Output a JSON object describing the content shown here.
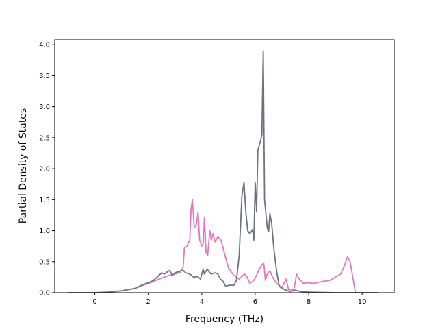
{
  "chart_data": {
    "type": "line",
    "title": "",
    "xlabel": "Frequency (THz)",
    "ylabel": "Partial Density of States",
    "xlim": [
      -1.5,
      11.2
    ],
    "ylim": [
      0,
      4.08
    ],
    "xticks": [
      0,
      2,
      4,
      6,
      8,
      10
    ],
    "xtick_labels": [
      "0",
      "2",
      "4",
      "6",
      "8",
      "10"
    ],
    "yticks": [
      0.0,
      0.5,
      1.0,
      1.5,
      2.0,
      2.5,
      3.0,
      3.5,
      4.0
    ],
    "ytick_labels": [
      "0.0",
      "0.5",
      "1.0",
      "1.5",
      "2.0",
      "2.5",
      "3.0",
      "3.5",
      "4.0"
    ],
    "grid": false,
    "legend": "none",
    "series": [
      {
        "color": "#e377c2",
        "points": [
          [
            -1.0,
            0.0
          ],
          [
            0.0,
            0.0
          ],
          [
            0.5,
            0.01
          ],
          [
            1.0,
            0.03
          ],
          [
            1.5,
            0.07
          ],
          [
            1.8,
            0.12
          ],
          [
            2.0,
            0.15
          ],
          [
            2.2,
            0.18
          ],
          [
            2.4,
            0.22
          ],
          [
            2.6,
            0.25
          ],
          [
            2.8,
            0.28
          ],
          [
            3.0,
            0.3
          ],
          [
            3.2,
            0.33
          ],
          [
            3.3,
            0.4
          ],
          [
            3.35,
            0.72
          ],
          [
            3.45,
            0.75
          ],
          [
            3.55,
            0.85
          ],
          [
            3.6,
            1.35
          ],
          [
            3.65,
            1.5
          ],
          [
            3.72,
            1.05
          ],
          [
            3.8,
            1.1
          ],
          [
            3.86,
            1.3
          ],
          [
            3.92,
            0.85
          ],
          [
            4.0,
            0.75
          ],
          [
            4.06,
            0.8
          ],
          [
            4.1,
            1.22
          ],
          [
            4.16,
            0.65
          ],
          [
            4.22,
            0.6
          ],
          [
            4.3,
            1.0
          ],
          [
            4.36,
            0.85
          ],
          [
            4.42,
            0.95
          ],
          [
            4.5,
            0.82
          ],
          [
            4.6,
            0.9
          ],
          [
            4.72,
            0.85
          ],
          [
            4.8,
            0.72
          ],
          [
            4.9,
            0.55
          ],
          [
            5.0,
            0.4
          ],
          [
            5.2,
            0.28
          ],
          [
            5.4,
            0.22
          ],
          [
            5.6,
            0.3
          ],
          [
            5.7,
            0.25
          ],
          [
            5.8,
            0.15
          ],
          [
            5.95,
            0.2
          ],
          [
            6.05,
            0.28
          ],
          [
            6.15,
            0.38
          ],
          [
            6.25,
            0.45
          ],
          [
            6.32,
            0.48
          ],
          [
            6.38,
            0.2
          ],
          [
            6.45,
            0.3
          ],
          [
            6.55,
            0.35
          ],
          [
            6.65,
            0.25
          ],
          [
            6.8,
            0.15
          ],
          [
            7.0,
            0.08
          ],
          [
            7.15,
            0.22
          ],
          [
            7.25,
            0.05
          ],
          [
            7.45,
            0.05
          ],
          [
            7.55,
            0.3
          ],
          [
            7.65,
            0.22
          ],
          [
            7.8,
            0.15
          ],
          [
            7.95,
            0.16
          ],
          [
            8.2,
            0.15
          ],
          [
            8.5,
            0.18
          ],
          [
            8.8,
            0.2
          ],
          [
            9.0,
            0.25
          ],
          [
            9.2,
            0.3
          ],
          [
            9.35,
            0.45
          ],
          [
            9.45,
            0.58
          ],
          [
            9.55,
            0.5
          ],
          [
            9.65,
            0.25
          ],
          [
            9.75,
            0.0
          ],
          [
            10.6,
            0.0
          ]
        ]
      },
      {
        "color": "#6b7280",
        "points": [
          [
            -1.0,
            0.0
          ],
          [
            0.0,
            0.0
          ],
          [
            0.5,
            0.01
          ],
          [
            1.0,
            0.03
          ],
          [
            1.5,
            0.07
          ],
          [
            1.8,
            0.13
          ],
          [
            2.0,
            0.16
          ],
          [
            2.2,
            0.2
          ],
          [
            2.4,
            0.28
          ],
          [
            2.5,
            0.32
          ],
          [
            2.6,
            0.3
          ],
          [
            2.7,
            0.33
          ],
          [
            2.8,
            0.36
          ],
          [
            2.9,
            0.28
          ],
          [
            3.0,
            0.32
          ],
          [
            3.2,
            0.35
          ],
          [
            3.3,
            0.36
          ],
          [
            3.4,
            0.32
          ],
          [
            3.55,
            0.3
          ],
          [
            3.7,
            0.25
          ],
          [
            3.85,
            0.26
          ],
          [
            3.95,
            0.22
          ],
          [
            4.05,
            0.38
          ],
          [
            4.1,
            0.3
          ],
          [
            4.2,
            0.38
          ],
          [
            4.35,
            0.3
          ],
          [
            4.5,
            0.32
          ],
          [
            4.6,
            0.3
          ],
          [
            4.7,
            0.22
          ],
          [
            4.8,
            0.18
          ],
          [
            4.9,
            0.1
          ],
          [
            5.0,
            0.12
          ],
          [
            5.2,
            0.12
          ],
          [
            5.3,
            0.2
          ],
          [
            5.4,
            0.6
          ],
          [
            5.5,
            1.55
          ],
          [
            5.58,
            1.78
          ],
          [
            5.65,
            1.3
          ],
          [
            5.72,
            1.0
          ],
          [
            5.8,
            0.95
          ],
          [
            5.9,
            1.02
          ],
          [
            5.95,
            0.85
          ],
          [
            6.0,
            1.78
          ],
          [
            6.05,
            1.3
          ],
          [
            6.1,
            2.3
          ],
          [
            6.2,
            2.45
          ],
          [
            6.25,
            2.55
          ],
          [
            6.3,
            3.9
          ],
          [
            6.35,
            1.5
          ],
          [
            6.45,
            1.05
          ],
          [
            6.5,
            0.98
          ],
          [
            6.55,
            1.28
          ],
          [
            6.62,
            1.1
          ],
          [
            6.7,
            0.7
          ],
          [
            6.8,
            0.35
          ],
          [
            6.9,
            0.1
          ],
          [
            7.1,
            0.05
          ],
          [
            7.3,
            0.02
          ],
          [
            7.5,
            0.04
          ],
          [
            7.7,
            0.02
          ],
          [
            8.0,
            0.01
          ],
          [
            9.0,
            0.0
          ],
          [
            10.6,
            0.0
          ]
        ]
      }
    ]
  }
}
